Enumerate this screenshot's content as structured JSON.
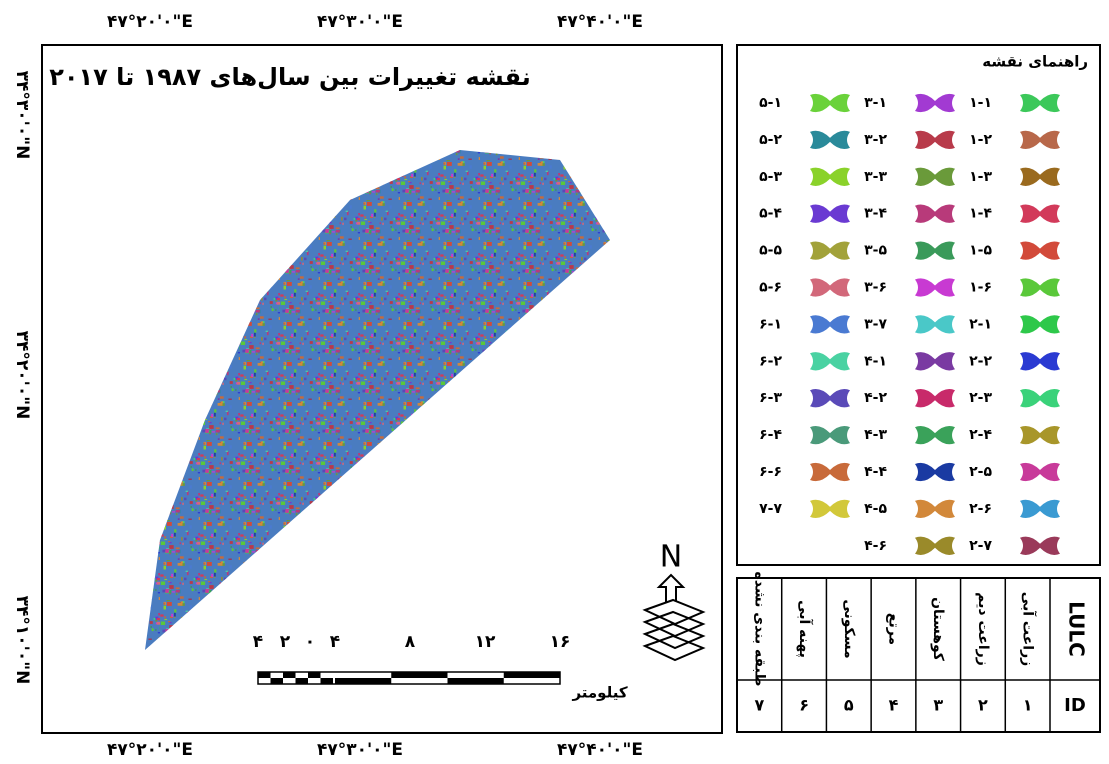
{
  "map": {
    "title": "نقشه تغییرات بین سال‌های ۱۹۸۷ تا ۲۰۱۷",
    "top_labels": [
      "۴۷°۲۰'۰\"E",
      "۴۷°۳۰'۰\"E",
      "۴۷°۴۰'۰\"E"
    ],
    "bottom_labels": [
      "۴۷°۲۰'۰\"E",
      "۴۷°۳۰'۰\"E",
      "۴۷°۴۰'۰\"E"
    ],
    "left_labels": [
      "۳۴°۳۰'۰\"N",
      "۳۴°۲۰'۰\"N",
      "۳۴°۱۰'۰\"N"
    ],
    "north": "N",
    "scale": {
      "ticks": [
        "۴",
        "۲",
        "۰",
        "۴",
        "۸",
        "۱۲",
        "۱۶"
      ],
      "unit": "کیلومتر"
    }
  },
  "legend": {
    "title": "راهنمای نقشه",
    "columns": [
      [
        {
          "label": "۱-۱",
          "color": "#3cc85a"
        },
        {
          "label": "۱-۲",
          "color": "#b8684a"
        },
        {
          "label": "۱-۳",
          "color": "#9a6a1e"
        },
        {
          "label": "۱-۴",
          "color": "#d23a5a"
        },
        {
          "label": "۱-۵",
          "color": "#d24a3a"
        },
        {
          "label": "۱-۶",
          "color": "#5ac83a"
        },
        {
          "label": "۲-۱",
          "color": "#2ec84a"
        },
        {
          "label": "۲-۲",
          "color": "#2a3ad2"
        },
        {
          "label": "۲-۳",
          "color": "#3ad27a"
        },
        {
          "label": "۲-۴",
          "color": "#a8962a"
        },
        {
          "label": "۲-۵",
          "color": "#c83a9a"
        },
        {
          "label": "۲-۶",
          "color": "#3a9ad2"
        },
        {
          "label": "۲-۷",
          "color": "#9a3a5a"
        }
      ],
      [
        {
          "label": "۳-۱",
          "color": "#a23ad2"
        },
        {
          "label": "۳-۲",
          "color": "#b83a4a"
        },
        {
          "label": "۳-۳",
          "color": "#6a9a3a"
        },
        {
          "label": "۳-۴",
          "color": "#b83a7a"
        },
        {
          "label": "۳-۵",
          "color": "#3a9a5a"
        },
        {
          "label": "۳-۶",
          "color": "#c83ad2"
        },
        {
          "label": "۳-۷",
          "color": "#4ac8c8"
        },
        {
          "label": "۴-۱",
          "color": "#7a3aa2"
        },
        {
          "label": "۴-۲",
          "color": "#c82a6a"
        },
        {
          "label": "۴-۳",
          "color": "#3aa25a"
        },
        {
          "label": "۴-۴",
          "color": "#1a3aa2"
        },
        {
          "label": "۴-۵",
          "color": "#d2883a"
        },
        {
          "label": "۴-۶",
          "color": "#9a8a2a"
        }
      ],
      [
        {
          "label": "۵-۱",
          "color": "#6ad23a"
        },
        {
          "label": "۵-۲",
          "color": "#2a8a9a"
        },
        {
          "label": "۵-۳",
          "color": "#8ad22a"
        },
        {
          "label": "۵-۴",
          "color": "#6a3ad2"
        },
        {
          "label": "۵-۵",
          "color": "#a2a23a"
        },
        {
          "label": "۵-۶",
          "color": "#d2687a"
        },
        {
          "label": "۶-۱",
          "color": "#4a7ad2"
        },
        {
          "label": "۶-۲",
          "color": "#4ad2a2"
        },
        {
          "label": "۶-۳",
          "color": "#5a4ab8"
        },
        {
          "label": "۶-۴",
          "color": "#4a9a7a"
        },
        {
          "label": "۶-۶",
          "color": "#c86a3a"
        },
        {
          "label": "۷-۷",
          "color": "#d2c83a"
        }
      ]
    ]
  },
  "table": {
    "header": [
      "LULC",
      "زراعت آبی",
      "زراعت دیم",
      "کوهستان",
      "مرتع",
      "مسکونی",
      "پهنه آبی",
      "طبقه بندی نشده"
    ],
    "ids": [
      "ID",
      "۱",
      "۲",
      "۳",
      "۴",
      "۵",
      "۶",
      "۷"
    ]
  }
}
